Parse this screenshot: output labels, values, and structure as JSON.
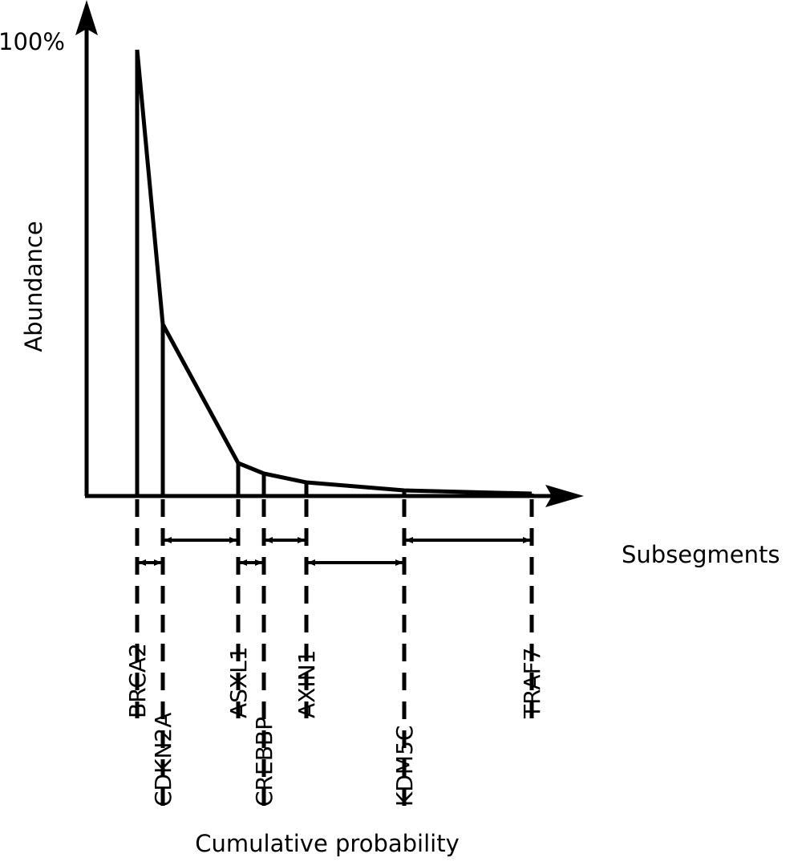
{
  "y_axis": {
    "label": "Abundance",
    "max_label": "100%"
  },
  "x_axis": {
    "upper_label": "Subsegments",
    "lower_label": "Cumulative probability"
  },
  "genes": [
    {
      "name": "BRCA2",
      "level": "upper"
    },
    {
      "name": "CDKN2A",
      "level": "lower"
    },
    {
      "name": "ASXL1",
      "level": "upper"
    },
    {
      "name": "CREBBP",
      "level": "lower"
    },
    {
      "name": "AXIN1",
      "level": "upper"
    },
    {
      "name": "KDM5C",
      "level": "lower"
    },
    {
      "name": "TRAF7",
      "level": "upper"
    }
  ],
  "colors": {
    "stroke": "#000000",
    "background": "#ffffff"
  }
}
